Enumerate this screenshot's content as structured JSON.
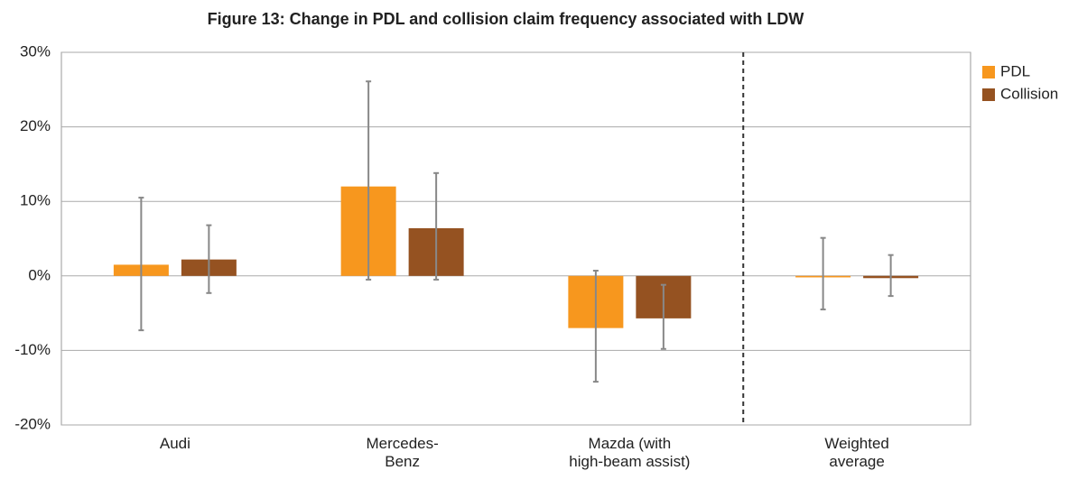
{
  "chart_data": {
    "type": "bar",
    "title": "Figure 13: Change in PDL and collision claim frequency associated with LDW",
    "categories": [
      [
        "Audi"
      ],
      [
        "Mercedes-",
        "Benz"
      ],
      [
        "Mazda (with",
        "high-beam assist)"
      ],
      [
        "Weighted",
        "average"
      ]
    ],
    "series": [
      {
        "name": "PDL",
        "color": "#f7971e",
        "values": [
          1.5,
          12.0,
          -7.0,
          -0.2
        ],
        "ci_low": [
          -7.3,
          -0.5,
          -14.2,
          -4.5
        ],
        "ci_high": [
          10.5,
          26.1,
          0.7,
          5.1
        ]
      },
      {
        "name": "Collision",
        "color": "#955221",
        "values": [
          2.2,
          6.4,
          -5.7,
          -0.3
        ],
        "ci_low": [
          -2.3,
          -0.5,
          -9.8,
          -2.7
        ],
        "ci_high": [
          6.8,
          13.8,
          -1.2,
          2.8
        ]
      }
    ],
    "ylim": [
      -20,
      30
    ],
    "yticks": [
      {
        "value": -20,
        "label": "-20%"
      },
      {
        "value": -10,
        "label": "-10%"
      },
      {
        "value": 0,
        "label": "0%"
      },
      {
        "value": 10,
        "label": "10%"
      },
      {
        "value": 20,
        "label": "20%"
      },
      {
        "value": 30,
        "label": "30%"
      }
    ],
    "grid": true,
    "legend": "right"
  }
}
